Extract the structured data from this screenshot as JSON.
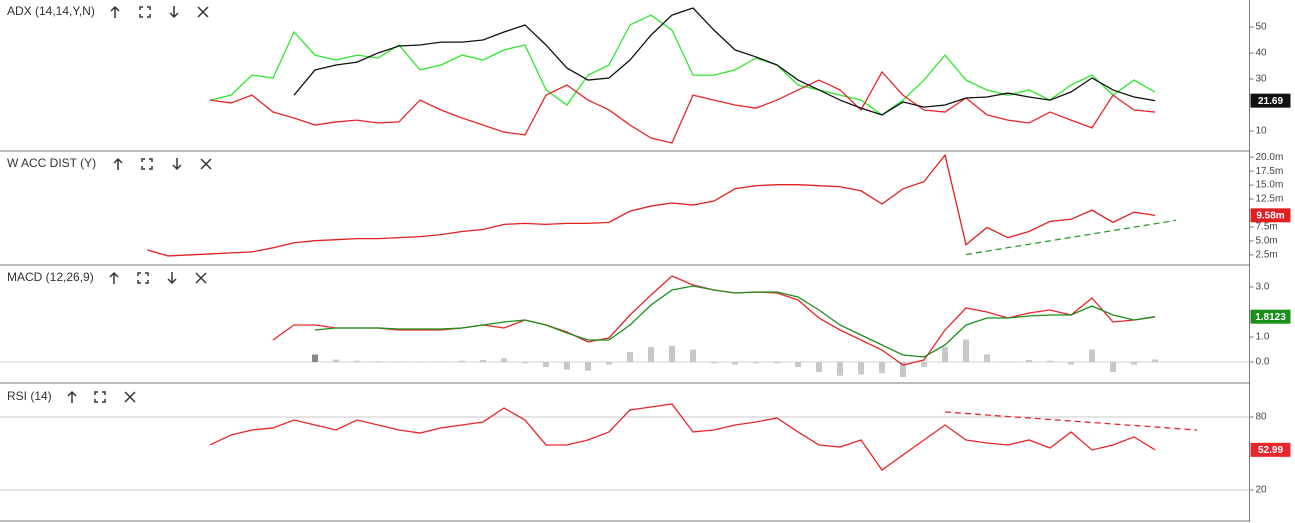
{
  "chart_data": [
    {
      "type": "line",
      "title": "ADX (14,14,Y,N)",
      "ylim": [
        2.7,
        60.4
      ],
      "yticks": [
        10,
        30,
        40,
        50
      ],
      "grid": false,
      "series": [
        {
          "color": "#2ee82e",
          "values": [
            null,
            null,
            null,
            21.9,
            23.8,
            31.5,
            30.4,
            48.1,
            39.2,
            37.3,
            39.2,
            38.1,
            43.1,
            33.5,
            35.4,
            39.2,
            37.3,
            41.2,
            43.1,
            25.8,
            20.0,
            31.5,
            35.4,
            50.8,
            54.6,
            48.8,
            31.5,
            31.5,
            33.5,
            38.1,
            35.4,
            27.7,
            25.8,
            23.8,
            21.9,
            16.2,
            21.9,
            29.6,
            39.2,
            29.6,
            25.8,
            23.8,
            25.8,
            21.9,
            27.7,
            31.5,
            23.8,
            29.6,
            25.0,
            null,
            null
          ]
        },
        {
          "color": "#e8262b",
          "values": [
            null,
            null,
            null,
            21.9,
            20.8,
            23.8,
            17.3,
            15.0,
            12.3,
            13.5,
            14.2,
            13.1,
            13.5,
            21.9,
            18.1,
            15.0,
            12.3,
            9.6,
            8.5,
            23.8,
            27.7,
            21.9,
            18.1,
            12.3,
            7.3,
            5.4,
            23.8,
            21.9,
            20.0,
            18.8,
            21.9,
            25.8,
            29.6,
            25.8,
            18.1,
            32.7,
            23.8,
            18.1,
            17.3,
            22.7,
            16.2,
            14.2,
            13.1,
            17.3,
            14.2,
            11.2,
            23.8,
            18.1,
            17.3,
            null,
            null
          ]
        },
        {
          "color": "#111111",
          "tag": true,
          "values": [
            null,
            null,
            null,
            null,
            null,
            null,
            null,
            23.8,
            33.5,
            35.4,
            36.5,
            40.0,
            42.7,
            43.1,
            44.2,
            44.2,
            45.0,
            48.1,
            50.8,
            43.1,
            34.2,
            29.6,
            30.4,
            37.3,
            46.9,
            54.6,
            57.3,
            48.8,
            41.2,
            38.5,
            35.4,
            29.6,
            25.8,
            21.9,
            18.8,
            16.2,
            21.2,
            19.2,
            20.0,
            22.7,
            23.1,
            24.6,
            23.1,
            21.9,
            25.0,
            30.4,
            25.8,
            23.1,
            21.69,
            null,
            null
          ]
        }
      ]
    },
    {
      "type": "line",
      "title": "W ACC DIST (Y)",
      "ylim": [
        860000,
        20930000
      ],
      "yticks": [
        {
          "value": 20000000,
          "label": "20.0m"
        },
        {
          "value": 17500000,
          "label": "17.5m"
        },
        {
          "value": 15000000,
          "label": "15.0m"
        },
        {
          "value": 12500000,
          "label": "12.5m"
        },
        {
          "value": 7500000,
          "label": "7.5m"
        },
        {
          "value": 5000000,
          "label": "5.0m"
        },
        {
          "value": 2500000,
          "label": "2.5m"
        }
      ],
      "grid": false,
      "series": [
        {
          "color": "#e02020",
          "tag": true,
          "values": [
            3390000,
            2300000,
            2480000,
            2660000,
            2850000,
            3030000,
            3760000,
            4670000,
            5040000,
            5220000,
            5400000,
            5400000,
            5580000,
            5770000,
            6130000,
            6680000,
            7040000,
            7960000,
            8140000,
            7960000,
            8140000,
            8140000,
            8320000,
            10330000,
            11240000,
            11790000,
            11420000,
            12150000,
            14340000,
            14890000,
            15070000,
            15070000,
            14890000,
            14710000,
            13980000,
            11610000,
            14340000,
            15620000,
            20370000,
            4310000,
            7410000,
            5580000,
            6680000,
            8500000,
            8870000,
            10510000,
            8320000,
            10150000,
            9580000,
            null,
            null
          ],
          "value_labels": [
            null,
            null,
            null,
            null,
            null,
            null,
            null,
            null,
            null,
            null,
            null,
            null,
            null,
            null,
            null,
            null,
            null,
            null,
            null,
            null,
            null,
            null,
            null,
            null,
            null,
            null,
            null,
            null,
            null,
            null,
            null,
            null,
            null,
            null,
            null,
            null,
            null,
            null,
            null,
            null,
            null,
            null,
            null,
            null,
            null,
            null,
            null,
            null,
            "9.58m",
            null,
            null
          ]
        },
        {
          "color": "#2a9d2a",
          "dash": true,
          "values": [
            null,
            null,
            null,
            null,
            null,
            null,
            null,
            null,
            null,
            null,
            null,
            null,
            null,
            null,
            null,
            null,
            null,
            null,
            null,
            null,
            null,
            null,
            null,
            null,
            null,
            null,
            null,
            null,
            null,
            null,
            null,
            null,
            null,
            null,
            null,
            null,
            null,
            null,
            null,
            2560000,
            3170000,
            3790000,
            4400000,
            5010000,
            5630000,
            6240000,
            6850000,
            7460000,
            8080000,
            8690000,
            null
          ]
        }
      ]
    },
    {
      "type": "line",
      "title": "MACD (12,26,9)",
      "ylim": [
        -0.8,
        3.84
      ],
      "yticks": [
        {
          "value": 3,
          "label": "3.0"
        },
        {
          "value": 1,
          "label": "1.0"
        },
        {
          "value": 0,
          "label": "0.0"
        }
      ],
      "grid": false,
      "series": [
        {
          "type": "bar",
          "color": "#c8c8c8",
          "values": [
            null,
            null,
            null,
            null,
            null,
            null,
            null,
            null,
            0.3,
            0.1,
            0.05,
            0.03,
            0,
            -0.02,
            0.02,
            0.05,
            0.08,
            0.15,
            -0.05,
            -0.2,
            -0.3,
            -0.35,
            -0.1,
            0.4,
            0.6,
            0.65,
            0.5,
            -0.05,
            -0.1,
            -0.05,
            -0.05,
            -0.2,
            -0.4,
            -0.55,
            -0.5,
            -0.45,
            -0.6,
            -0.2,
            0.6,
            0.9,
            0.3,
            0,
            0.08,
            0.05,
            -0.1,
            0.5,
            -0.4,
            -0.1,
            0.1,
            null,
            null
          ]
        },
        {
          "color": "#e8262b",
          "values": [
            null,
            null,
            null,
            null,
            null,
            null,
            0.88,
            1.48,
            1.48,
            1.36,
            1.36,
            1.36,
            1.28,
            1.28,
            1.28,
            1.36,
            1.48,
            1.36,
            1.68,
            1.48,
            1.2,
            0.8,
            0.96,
            1.88,
            2.68,
            3.44,
            3.08,
            2.88,
            2.76,
            2.8,
            2.76,
            2.48,
            1.76,
            1.28,
            0.88,
            0.48,
            -0.12,
            0.08,
            1.28,
            2.16,
            2.0,
            1.76,
            1.96,
            2.08,
            1.88,
            2.56,
            1.6,
            1.68,
            1.8,
            null,
            null
          ]
        },
        {
          "color": "#1a8f1a",
          "tag": true,
          "values": [
            null,
            null,
            null,
            null,
            null,
            null,
            null,
            null,
            1.28,
            1.36,
            1.36,
            1.36,
            1.32,
            1.32,
            1.32,
            1.36,
            1.48,
            1.6,
            1.68,
            1.48,
            1.16,
            0.88,
            0.88,
            1.48,
            2.28,
            2.88,
            3.04,
            2.88,
            2.76,
            2.8,
            2.8,
            2.6,
            2.08,
            1.48,
            1.08,
            0.68,
            0.28,
            0.2,
            0.68,
            1.48,
            1.76,
            1.76,
            1.84,
            1.88,
            1.88,
            2.24,
            1.88,
            1.68,
            1.8123,
            null,
            null
          ]
        }
      ]
    },
    {
      "type": "line",
      "title": "RSI (14)",
      "ylim": [
        -4.66,
        107.1
      ],
      "yticks": [
        80,
        20
      ],
      "grid": true,
      "series": [
        {
          "color": "#e8262b",
          "tag": true,
          "values": [
            null,
            null,
            null,
            57.0,
            65.2,
            69.3,
            71.0,
            77.5,
            73.4,
            69.3,
            77.5,
            73.4,
            69.3,
            66.8,
            71.0,
            73.4,
            75.9,
            87.4,
            77.5,
            57.0,
            57.0,
            61.1,
            67.7,
            85.8,
            88.2,
            90.7,
            67.7,
            69.3,
            73.4,
            75.9,
            79.2,
            67.7,
            57.0,
            55.3,
            61.1,
            36.4,
            48.8,
            61.1,
            73.4,
            61.1,
            58.6,
            57.0,
            61.1,
            54.5,
            67.7,
            52.9,
            57.0,
            63.6,
            52.99,
            null,
            null
          ]
        },
        {
          "color": "#e8262b",
          "dash": true,
          "values": [
            null,
            null,
            null,
            null,
            null,
            null,
            null,
            null,
            null,
            null,
            null,
            null,
            null,
            null,
            null,
            null,
            null,
            null,
            null,
            null,
            null,
            null,
            null,
            null,
            null,
            null,
            null,
            null,
            null,
            null,
            null,
            null,
            null,
            null,
            null,
            null,
            null,
            null,
            84.1,
            82.9,
            81.6,
            80.4,
            79.2,
            77.9,
            76.7,
            75.5,
            74.2,
            73.0,
            71.8,
            70.5,
            69.3
          ]
        }
      ]
    }
  ]
}
